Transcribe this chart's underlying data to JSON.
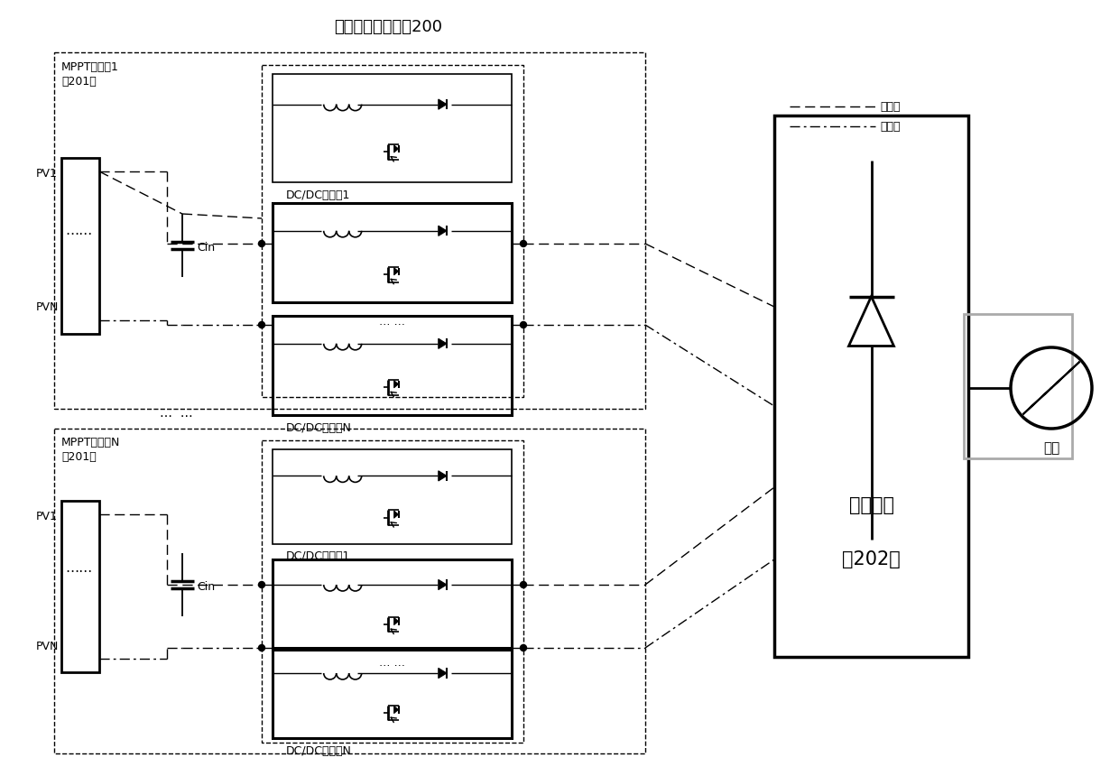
{
  "title": "分体式组串逆变器200",
  "bg_color": "#ffffff",
  "legend_dotted_label": "正母线",
  "legend_dashdot_label": "负母线",
  "mppt_box1_label": "MPPT汇流符1",
  "mppt_box1_sublabel": "（201）",
  "mppt_boxN_label": "MPPT汇流符N",
  "mppt_boxN_sublabel": "（201）",
  "dcdc1_label": "DC/DC变换器1",
  "dcdcN_label": "DC/DC变换器N",
  "inv_label": "逆变单元",
  "inv_sublabel": "（202）",
  "grid_label": "电网",
  "cin_label": "Cin",
  "pv1_label": "PV1",
  "pvN_label": "PVN"
}
